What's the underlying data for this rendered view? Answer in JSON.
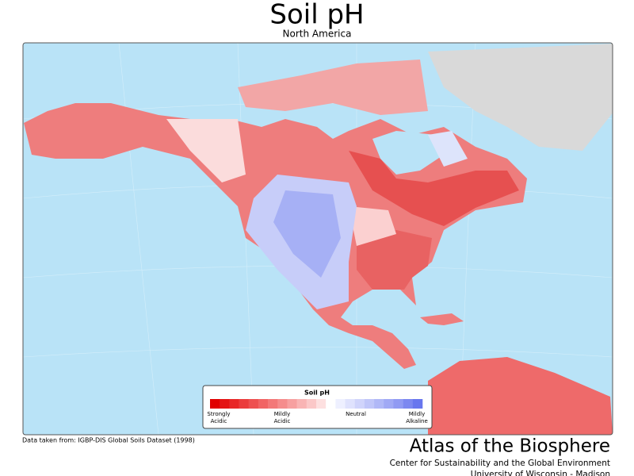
{
  "header": {
    "title": "Soil pH",
    "subtitle": "North America"
  },
  "legend": {
    "title": "Soil pH",
    "colors": [
      "#e00000",
      "#e41414",
      "#e82828",
      "#eb3c3c",
      "#ee5050",
      "#f16464",
      "#f37878",
      "#f58c8c",
      "#f7a0a0",
      "#f9b4b4",
      "#fbc8c8",
      "#fde0e0",
      "#ffffff",
      "#eef0ff",
      "#dfe2fd",
      "#d0d4fb",
      "#c0c6f9",
      "#b0b8f7",
      "#a0a9f5",
      "#909af3",
      "#7c88f0",
      "#6876ee"
    ],
    "labels": [
      [
        "Strongly",
        "Acidic"
      ],
      [
        "Mildly",
        "Acidic"
      ],
      [
        "Neutral"
      ],
      [
        "Mildly",
        "Alkaline"
      ]
    ]
  },
  "footer": {
    "source": "Data taken from: IGBP-DIS Global Soils Dataset (1998)",
    "brand": "Atlas of the Biosphere",
    "org": "Center for Sustainability and the Global Environment",
    "university": "University of Wisconsin - Madison"
  }
}
